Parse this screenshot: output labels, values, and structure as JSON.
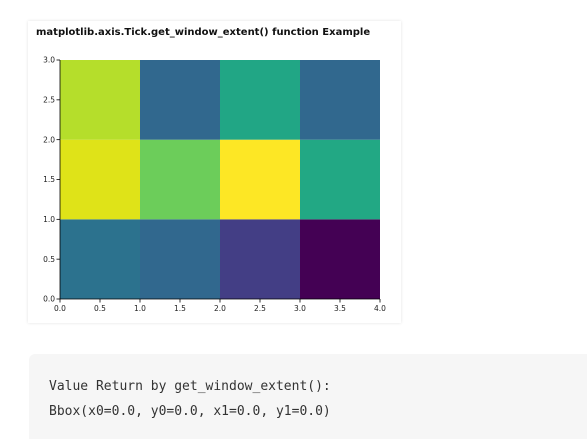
{
  "chart_data": {
    "type": "heatmap",
    "title": "matplotlib.axis.Tick.get_window_extent() function Example",
    "xlabel": "",
    "ylabel": "",
    "xlim": [
      0.0,
      4.0
    ],
    "ylim": [
      0.0,
      3.0
    ],
    "x_edges": [
      0,
      1,
      2,
      3,
      4
    ],
    "y_edges": [
      0,
      1,
      2,
      3
    ],
    "xticks": [
      "0.0",
      "0.5",
      "1.0",
      "1.5",
      "2.0",
      "2.5",
      "3.0",
      "3.5",
      "4.0"
    ],
    "yticks": [
      "0.0",
      "0.5",
      "1.0",
      "1.5",
      "2.0",
      "2.5",
      "3.0"
    ],
    "colormap": "viridis",
    "grid": false,
    "cell_colors": [
      [
        "#2c728e",
        "#31688e",
        "#433e85",
        "#440154"
      ],
      [
        "#dfe318",
        "#6ccd5a",
        "#fde725",
        "#22a884"
      ],
      [
        "#b5de2b",
        "#31688e",
        "#21a685",
        "#31688e"
      ]
    ]
  },
  "output": {
    "line1": "Value Return by get_window_extent():",
    "line2": "Bbox(x0=0.0, y0=0.0, x1=0.0, y1=0.0)"
  }
}
